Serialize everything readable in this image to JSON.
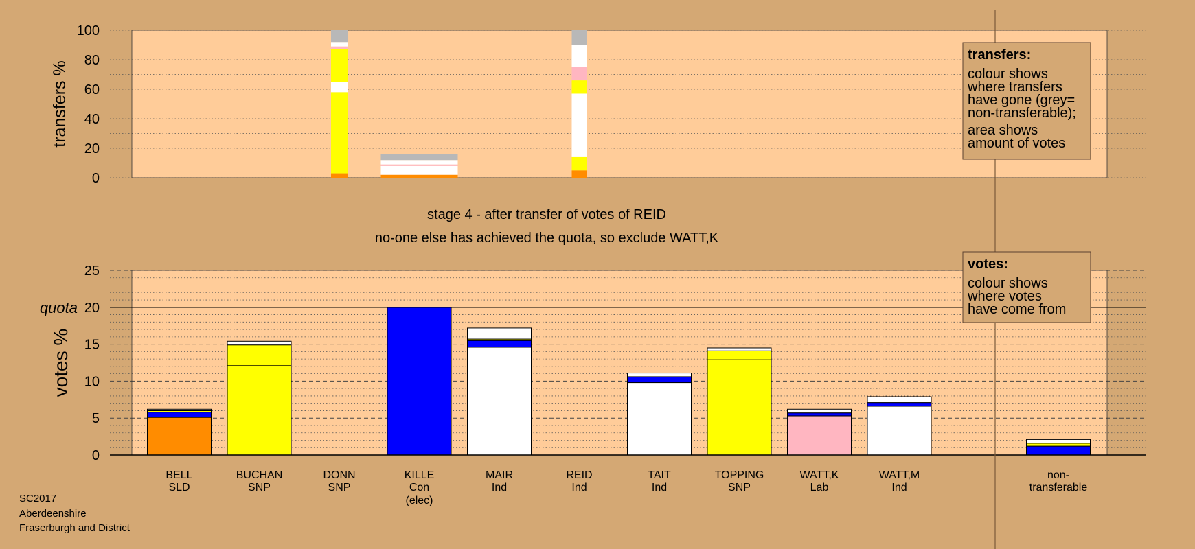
{
  "chart_data": [
    {
      "type": "bar",
      "panel": "transfers",
      "ylabel": "transfers %",
      "ylim": [
        0,
        100
      ],
      "yticks": [
        0,
        20,
        40,
        60,
        80,
        100
      ],
      "grid": "dotted horizontal",
      "legend": {
        "position": "top-right",
        "title": "transfers:",
        "lines": [
          "colour shows",
          "where transfers",
          "have gone (grey=",
          "non-transferable);"
        ],
        "lines2": [
          "area shows",
          "amount of votes"
        ]
      },
      "bars": [
        {
          "from": "DONN",
          "segments": [
            {
              "to": "BELL",
              "color": "#FF8C00",
              "value": 3
            },
            {
              "to": "BUCHAN",
              "color": "#FFFF00",
              "value": 55
            },
            {
              "to": "MAIR",
              "color": "#FFFFFF",
              "value": 7
            },
            {
              "to": "TOPPING",
              "color": "#FFFF00",
              "value": 22
            },
            {
              "to": "WATT,K",
              "color": "#FFB6C1",
              "value": 2
            },
            {
              "to": "WATT,M",
              "color": "#FFFFFF",
              "value": 3
            },
            {
              "to": "non-transferable",
              "color": "#B8B8B8",
              "value": 8
            }
          ]
        },
        {
          "from": "KILLE",
          "segments": [
            {
              "to": "BELL",
              "color": "#FF8C00",
              "value": 2
            },
            {
              "to": "MAIR",
              "color": "#FFFFFF",
              "value": 6
            },
            {
              "to": "WATT,K",
              "color": "#FFB6C1",
              "value": 1
            },
            {
              "to": "WATT,M",
              "color": "#FFFFFF",
              "value": 3
            },
            {
              "to": "non-transferable",
              "color": "#B8B8B8",
              "value": 4
            }
          ]
        },
        {
          "from": "REID",
          "segments": [
            {
              "to": "BELL",
              "color": "#FF8C00",
              "value": 5
            },
            {
              "to": "BUCHAN",
              "color": "#FFFF00",
              "value": 9
            },
            {
              "to": "TAIT",
              "color": "#FFFFFF",
              "value": 43
            },
            {
              "to": "TOPPING",
              "color": "#FFFF00",
              "value": 9
            },
            {
              "to": "WATT,K",
              "color": "#FFB6C1",
              "value": 9
            },
            {
              "to": "WATT,M",
              "color": "#FFFFFF",
              "value": 15
            },
            {
              "to": "non-transferable",
              "color": "#B8B8B8",
              "value": 10
            }
          ]
        }
      ]
    },
    {
      "type": "bar",
      "panel": "votes",
      "title": "stage 4 - after transfer of votes of REID",
      "subtitle": "no-one else has achieved the quota, so exclude WATT,K",
      "ylabel": "votes %",
      "ylim": [
        0,
        25
      ],
      "yticks": [
        0,
        5,
        10,
        15,
        20,
        25
      ],
      "quota": 20,
      "quota_label": "quota",
      "grid": "dashed major, dotted minor",
      "legend": {
        "position": "top-right",
        "title": "votes:",
        "lines": [
          "colour shows",
          "where votes",
          "have come from"
        ]
      },
      "categories": [
        {
          "name": "BELL",
          "party": "SLD"
        },
        {
          "name": "BUCHAN",
          "party": "SNP"
        },
        {
          "name": "DONN",
          "party": "SNP"
        },
        {
          "name": "KILLE",
          "party": "Con",
          "note": "(elec)"
        },
        {
          "name": "MAIR",
          "party": "Ind"
        },
        {
          "name": "REID",
          "party": "Ind"
        },
        {
          "name": "TAIT",
          "party": "Ind"
        },
        {
          "name": "TOPPING",
          "party": "SNP"
        },
        {
          "name": "WATT,K",
          "party": "Lab"
        },
        {
          "name": "WATT,M",
          "party": "Ind"
        }
      ],
      "nontransferable_label": [
        "non-",
        "transferable"
      ],
      "stacks": [
        [
          {
            "color": "#FF8C00",
            "value": 5.1
          },
          {
            "color": "#0000FF",
            "value": 0.7
          },
          {
            "color": "#FFFF00",
            "value": 0.2
          },
          {
            "color": "#FFFFFF",
            "value": 0.2
          }
        ],
        [
          {
            "color": "#FFFF00",
            "value": 12.1
          },
          {
            "color": "#FFFF00",
            "value": 2.8
          },
          {
            "color": "#FFFFFF",
            "value": 0.5
          }
        ],
        [],
        [
          {
            "color": "#0000FF",
            "value": 20.0
          }
        ],
        [
          {
            "color": "#FFFFFF",
            "value": 14.6
          },
          {
            "color": "#0000FF",
            "value": 0.9
          },
          {
            "color": "#FFFF00",
            "value": 0.2
          },
          {
            "color": "#FFFFFF",
            "value": 1.5
          }
        ],
        [],
        [
          {
            "color": "#FFFFFF",
            "value": 9.8
          },
          {
            "color": "#0000FF",
            "value": 0.8
          },
          {
            "color": "#FFFFFF",
            "value": 0.5
          }
        ],
        [
          {
            "color": "#FFFF00",
            "value": 12.9
          },
          {
            "color": "#FFFF00",
            "value": 1.2
          },
          {
            "color": "#FFFFFF",
            "value": 0.4
          }
        ],
        [
          {
            "color": "#FFB6C1",
            "value": 5.3
          },
          {
            "color": "#0000FF",
            "value": 0.4
          },
          {
            "color": "#FFFFFF",
            "value": 0.5
          }
        ],
        [
          {
            "color": "#FFFFFF",
            "value": 6.6
          },
          {
            "color": "#0000FF",
            "value": 0.5
          },
          {
            "color": "#FFFFFF",
            "value": 0.8
          }
        ]
      ],
      "nontransferable": [
        {
          "color": "#0000FF",
          "value": 1.2
        },
        {
          "color": "#FFFF00",
          "value": 0.4
        },
        {
          "color": "#FFFFFF",
          "value": 0.5
        }
      ]
    }
  ],
  "footer": {
    "line1": "SC2017",
    "line2": "Aberdeenshire",
    "line3": "Fraserburgh and District"
  },
  "colors": {
    "background": "#D4A874",
    "plot_background": "#FFCC99",
    "grey_nontransferable": "#B8B8B8"
  }
}
